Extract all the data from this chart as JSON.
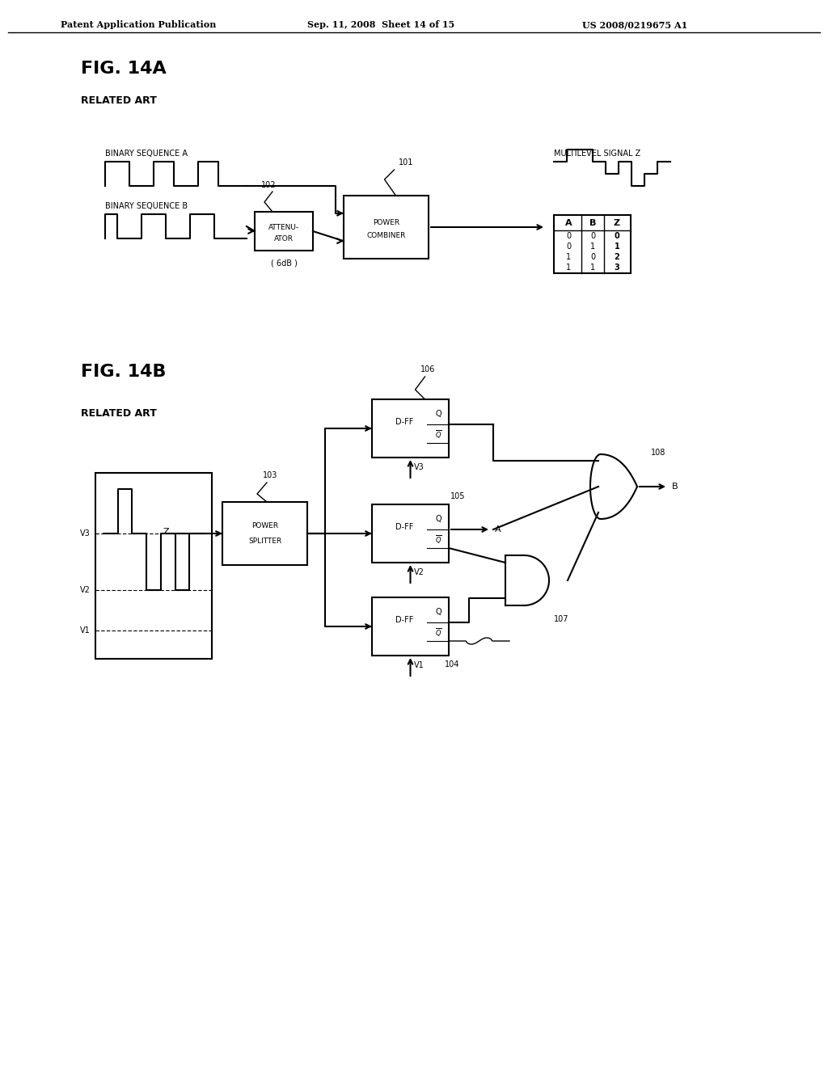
{
  "bg_color": "#ffffff",
  "header_left": "Patent Application Publication",
  "header_mid": "Sep. 11, 2008  Sheet 14 of 15",
  "header_right": "US 2008/0219675 A1",
  "fig14a_title": "FIG. 14A",
  "fig14a_sub": "RELATED ART",
  "fig14b_title": "FIG. 14B",
  "fig14b_sub": "RELATED ART"
}
